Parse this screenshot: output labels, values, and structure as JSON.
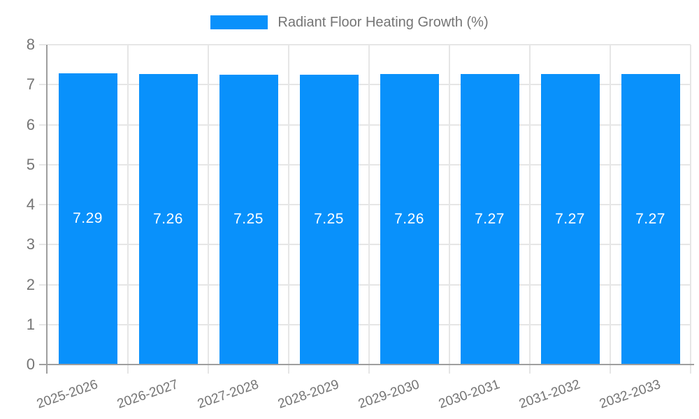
{
  "legend": {
    "label": "Radiant Floor Heating Growth (%)"
  },
  "colors": {
    "bar": "#0991fb",
    "value_label": "#ffffff",
    "legend_text": "#757575",
    "tick_label": "#757575",
    "axis_line": "#9e9e9e",
    "grid_line": "#e6e6e6",
    "background": "#ffffff"
  },
  "chart_data": {
    "type": "bar",
    "title": "Radiant Floor Heating Growth (%)",
    "categories": [
      "2025-2026",
      "2026-2027",
      "2027-2028",
      "2028-2029",
      "2029-2030",
      "2030-2031",
      "2031-2032",
      "2032-2033"
    ],
    "values": [
      7.29,
      7.26,
      7.25,
      7.25,
      7.26,
      7.27,
      7.27,
      7.27
    ],
    "bar_labels": [
      "7.29",
      "7.26",
      "7.25",
      "7.25",
      "7.26",
      "7.27",
      "7.27",
      "7.27"
    ],
    "xlabel": "",
    "ylabel": "",
    "ylim": [
      0,
      8
    ],
    "yticks": [
      0,
      1,
      2,
      3,
      4,
      5,
      6,
      7,
      8
    ],
    "grid": true,
    "legend_position": "top",
    "legend_entries": [
      "Radiant Floor Heating Growth (%)"
    ],
    "x_label_rotation_deg": -19
  }
}
